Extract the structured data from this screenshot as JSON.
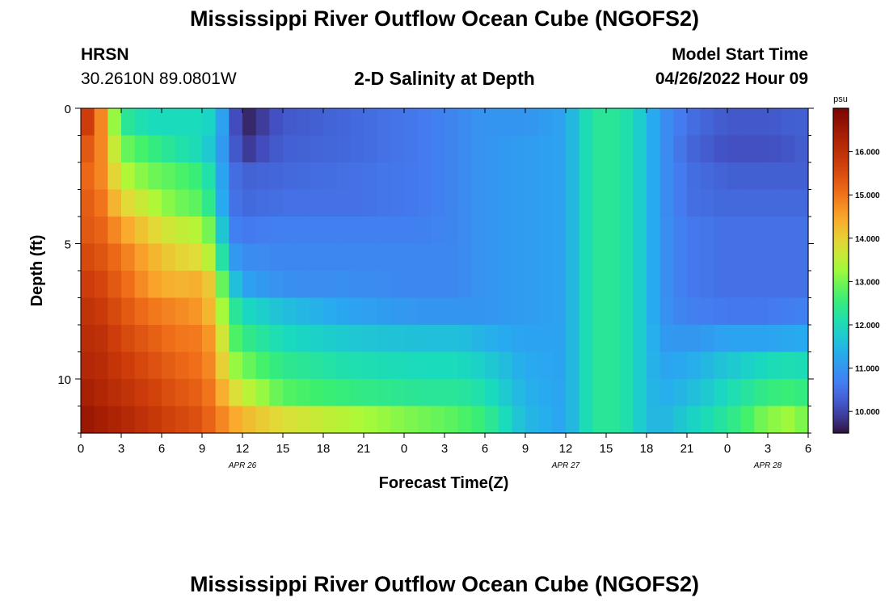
{
  "header": {
    "title": "Mississippi River Outflow Ocean Cube (NGOFS2)",
    "station": "HRSN",
    "coords": "30.2610N  89.0801W",
    "subtitle": "2-D Salinity at Depth",
    "model_start_label": "Model Start Time",
    "model_start_value": "04/26/2022 Hour 09"
  },
  "footer": {
    "title": "Mississippi River Outflow Ocean Cube (NGOFS2)"
  },
  "chart_data": {
    "type": "heatmap",
    "title": "2-D Salinity at Depth",
    "xlabel": "Forecast Time(Z)",
    "ylabel": "Depth (ft)",
    "x_hours_range": [
      0,
      54
    ],
    "x_tick_labels": [
      "0",
      "3",
      "6",
      "9",
      "12",
      "15",
      "18",
      "21",
      "0",
      "3",
      "6",
      "9",
      "12",
      "15",
      "18",
      "21",
      "0",
      "3",
      "6"
    ],
    "date_labels": [
      {
        "label": "APR 26",
        "hour": 12
      },
      {
        "label": "APR 27",
        "hour": 36
      },
      {
        "label": "APR 28",
        "hour": 51
      }
    ],
    "y_range": [
      0,
      12
    ],
    "y_tick_labels": [
      "0",
      "5",
      "10"
    ],
    "colorbar": {
      "unit": "psu",
      "range": [
        9.5,
        17.0
      ],
      "tick_labels": [
        "10.000",
        "11.000",
        "12.000",
        "13.000",
        "14.000",
        "15.000",
        "16.000"
      ],
      "tick_values": [
        10,
        11,
        12,
        13,
        14,
        15,
        16
      ]
    },
    "depth_rows_ft": [
      0,
      1,
      2,
      3,
      4,
      5,
      6,
      7,
      8,
      9,
      10,
      11
    ],
    "hours_keyframes": [
      0,
      1.5,
      3,
      5,
      7,
      9,
      10,
      11,
      12,
      15,
      20,
      25,
      28,
      30,
      33,
      36,
      37,
      38,
      40,
      42,
      43,
      45,
      48,
      51,
      53,
      54
    ],
    "salinity_rows": [
      [
        16.2,
        14.8,
        12.4,
        12.0,
        12.0,
        12.0,
        11.8,
        10.5,
        9.6,
        10.2,
        10.4,
        10.6,
        10.8,
        11.0,
        11.0,
        11.2,
        11.8,
        12.3,
        12.3,
        11.6,
        11.0,
        10.5,
        10.2,
        10.2,
        10.3,
        10.3
      ],
      [
        15.6,
        14.8,
        13.0,
        12.6,
        12.2,
        12.0,
        11.5,
        10.6,
        9.8,
        10.3,
        10.4,
        10.6,
        10.8,
        11.0,
        11.1,
        11.2,
        11.8,
        12.3,
        12.3,
        11.6,
        11.0,
        10.4,
        10.1,
        10.1,
        10.2,
        10.3
      ],
      [
        15.3,
        14.8,
        13.5,
        13.0,
        12.8,
        12.5,
        11.8,
        10.6,
        10.3,
        10.4,
        10.5,
        10.6,
        10.8,
        11.0,
        11.1,
        11.2,
        11.8,
        12.3,
        12.3,
        11.6,
        11.0,
        10.5,
        10.3,
        10.3,
        10.3,
        10.3
      ],
      [
        15.4,
        15.0,
        14.0,
        13.5,
        13.0,
        12.8,
        12.0,
        10.6,
        10.4,
        10.5,
        10.5,
        10.6,
        10.8,
        11.0,
        11.1,
        11.2,
        11.8,
        12.3,
        12.3,
        11.6,
        11.0,
        10.5,
        10.4,
        10.4,
        10.4,
        10.4
      ],
      [
        15.4,
        15.2,
        14.6,
        14.0,
        13.6,
        13.4,
        12.6,
        10.8,
        10.6,
        10.7,
        10.7,
        10.7,
        10.8,
        11.0,
        11.1,
        11.2,
        11.8,
        12.3,
        12.3,
        11.6,
        11.0,
        10.6,
        10.5,
        10.5,
        10.5,
        10.5
      ],
      [
        15.6,
        15.4,
        15.0,
        14.4,
        14.0,
        13.8,
        13.2,
        11.2,
        10.9,
        10.8,
        10.8,
        10.8,
        10.8,
        11.0,
        11.1,
        11.2,
        11.8,
        12.3,
        12.3,
        11.6,
        11.0,
        10.6,
        10.5,
        10.5,
        10.5,
        10.5
      ],
      [
        15.8,
        15.6,
        15.2,
        14.6,
        14.3,
        14.4,
        13.8,
        12.0,
        11.2,
        10.9,
        10.9,
        10.8,
        10.8,
        11.0,
        11.1,
        11.2,
        11.8,
        12.3,
        12.3,
        11.6,
        11.0,
        10.6,
        10.5,
        10.5,
        10.5,
        10.5
      ],
      [
        16.0,
        15.8,
        15.4,
        15.0,
        14.8,
        14.6,
        14.0,
        12.6,
        12.0,
        11.6,
        11.2,
        11.0,
        11.0,
        11.0,
        11.1,
        11.2,
        11.8,
        12.3,
        12.3,
        11.6,
        11.0,
        10.7,
        10.6,
        10.6,
        10.7,
        10.7
      ],
      [
        16.1,
        16.0,
        15.6,
        15.3,
        15.0,
        14.9,
        14.4,
        13.0,
        12.5,
        12.0,
        11.7,
        11.6,
        11.6,
        11.4,
        11.2,
        11.2,
        11.8,
        12.3,
        12.3,
        11.6,
        11.1,
        11.0,
        11.2,
        11.2,
        11.3,
        11.3
      ],
      [
        16.2,
        16.1,
        15.8,
        15.5,
        15.2,
        15.0,
        14.6,
        13.4,
        13.0,
        12.4,
        12.1,
        12.0,
        12.0,
        11.8,
        11.3,
        11.2,
        11.8,
        12.3,
        12.3,
        11.6,
        11.2,
        11.3,
        11.7,
        12.0,
        12.1,
        12.0
      ],
      [
        16.4,
        16.2,
        16.0,
        15.7,
        15.4,
        15.2,
        14.8,
        14.0,
        13.6,
        12.8,
        12.5,
        12.3,
        12.3,
        12.1,
        11.4,
        11.2,
        11.8,
        12.3,
        12.3,
        11.6,
        11.3,
        11.5,
        12.0,
        12.5,
        12.6,
        12.4
      ],
      [
        16.6,
        16.4,
        16.2,
        15.9,
        15.6,
        15.4,
        15.0,
        14.6,
        14.3,
        13.8,
        13.4,
        13.0,
        12.8,
        12.5,
        11.5,
        11.2,
        11.8,
        12.3,
        12.3,
        11.6,
        11.4,
        11.8,
        12.3,
        13.1,
        13.3,
        12.8
      ]
    ]
  }
}
